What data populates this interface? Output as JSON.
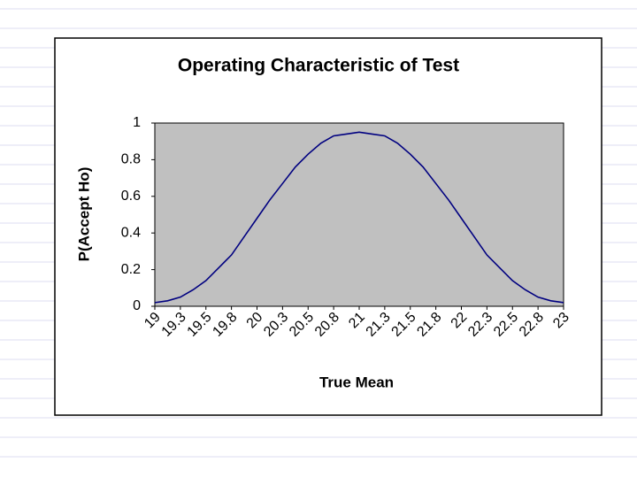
{
  "chart_data": {
    "type": "line",
    "title": "Operating Characteristic of Test",
    "x_label": "True Mean",
    "y_label": "P(Accept Ho)",
    "categories": [
      "19",
      null,
      "19.3",
      null,
      "19.5",
      null,
      "19.8",
      null,
      "20",
      null,
      "20.3",
      null,
      "20.5",
      null,
      "20.8",
      null,
      "21",
      null,
      "21.3",
      null,
      "21.5",
      null,
      "21.8",
      null,
      "22",
      null,
      "22.3",
      null,
      "22.5",
      null,
      "22.8",
      null,
      "23"
    ],
    "series": [
      {
        "name": "P(Accept Ho)",
        "color": "#000080",
        "values": [
          0.02,
          0.03,
          0.05,
          0.09,
          0.14,
          0.21,
          0.28,
          0.38,
          0.48,
          0.58,
          0.67,
          0.76,
          0.83,
          0.89,
          0.93,
          0.94,
          0.95,
          0.94,
          0.93,
          0.89,
          0.83,
          0.76,
          0.67,
          0.58,
          0.48,
          0.38,
          0.28,
          0.21,
          0.14,
          0.09,
          0.05,
          0.03,
          0.02
        ]
      }
    ],
    "ylim": [
      0,
      1
    ],
    "yticks": [
      0,
      0.2,
      0.4,
      0.6,
      0.8,
      1
    ],
    "plot_background": "#c0c0c0"
  }
}
